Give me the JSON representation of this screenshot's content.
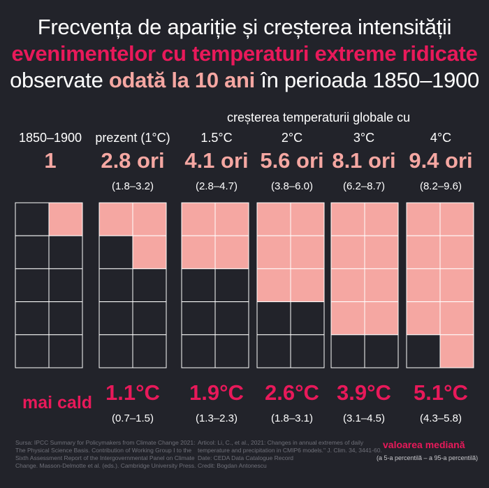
{
  "title": {
    "line1": "Frecvența de apariție și creșterea intensității",
    "line2": "evenimentelor cu temperaturi extreme ridicate",
    "line3_pre": "observate ",
    "line3_hi": "odată la 10 ani",
    "line3_post": " în perioada 1850–1900"
  },
  "warming_label": "creșterea temperaturii globale cu",
  "warmer_label": "mai cald",
  "median_label": "valoarea mediană",
  "percentile_label": "(a 5-a percentilă – a 95-a percentilă)",
  "source_left": [
    "Sursa: IPCC Summary for Policymakers from Climate Change 2021:",
    "The Physical Science Basis. Contribution of Working Group I to the",
    "Sixth Assessment Report of the Intergovernmental Panel on Climate",
    "Change. Masson-Delmotte et al. (eds.). Cambridge University Press."
  ],
  "source_right": [
    "Articol: Li, C., et al., 2021: Changes in annual extremes of daily",
    "temperature and precipitation in CMIP6 models.\" J. Clim. 34, 3441-60.",
    "Date: CEDA Data Catalogue Record",
    "Credit: Bogdan Antonescu"
  ],
  "colors": {
    "background": "#22232a",
    "highlight": "#f5a7a2",
    "accent": "#e8195a",
    "cell": "#22232a"
  },
  "chart_data": {
    "type": "table",
    "cells_per_panel": 10,
    "columns": [
      {
        "label": "1850–1900",
        "frequency": "1",
        "frequency_value": 1,
        "frequency_range": "",
        "temp": "",
        "temp_range": ""
      },
      {
        "label": "prezent (1°C)",
        "frequency": "2.8 ori",
        "frequency_value": 2.8,
        "frequency_range": "(1.8–3.2)",
        "temp": "1.1°C",
        "temp_value": 1.1,
        "temp_range": "(0.7–1.5)"
      },
      {
        "label": "1.5°C",
        "frequency": "4.1 ori",
        "frequency_value": 4.1,
        "frequency_range": "(2.8–4.7)",
        "temp": "1.9°C",
        "temp_value": 1.9,
        "temp_range": "(1.3–2.3)"
      },
      {
        "label": "2°C",
        "frequency": "5.6 ori",
        "frequency_value": 5.6,
        "frequency_range": "(3.8–6.0)",
        "temp": "2.6°C",
        "temp_value": 2.6,
        "temp_range": "(1.8–3.1)"
      },
      {
        "label": "3°C",
        "frequency": "8.1 ori",
        "frequency_value": 8.1,
        "frequency_range": "(6.2–8.7)",
        "temp": "3.9°C",
        "temp_value": 3.9,
        "temp_range": "(3.1–4.5)"
      },
      {
        "label": "4°C",
        "frequency": "9.4 ori",
        "frequency_value": 9.4,
        "frequency_range": "(8.2–9.6)",
        "temp": "5.1°C",
        "temp_value": 5.1,
        "temp_range": "(4.3–5.8)"
      }
    ]
  }
}
